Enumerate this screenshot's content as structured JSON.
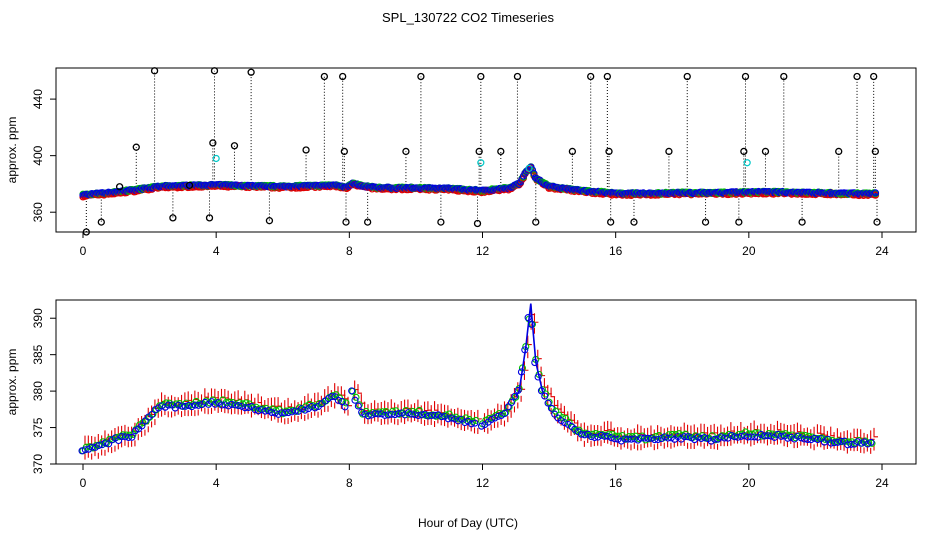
{
  "chart_data": [
    {
      "type": "scatter",
      "title": "SPL_130722  CO2 Timeseries",
      "ylabel": "approx. ppm",
      "xlim": [
        0,
        24
      ],
      "ylim": [
        346,
        462
      ],
      "x_ticks": [
        0,
        4,
        8,
        12,
        16,
        20,
        24
      ],
      "y_ticks": [
        360,
        400,
        440
      ],
      "x_tick_labels": [
        "0",
        "4",
        "8",
        "12",
        "16",
        "20",
        "24"
      ],
      "y_tick_labels": [
        "360",
        "400",
        "440"
      ],
      "baseline_anchors": [
        [
          0,
          372
        ],
        [
          0.5,
          373
        ],
        [
          1,
          374
        ],
        [
          1.5,
          375.5
        ],
        [
          2,
          377
        ],
        [
          2.3,
          378
        ],
        [
          3,
          378.5
        ],
        [
          4,
          379
        ],
        [
          5,
          378.5
        ],
        [
          6,
          378
        ],
        [
          7,
          378.5
        ],
        [
          7.6,
          379
        ],
        [
          7.9,
          377.5
        ],
        [
          8.1,
          380
        ],
        [
          8.5,
          378
        ],
        [
          9,
          377
        ],
        [
          10,
          377
        ],
        [
          11,
          376.5
        ],
        [
          12,
          375
        ],
        [
          12.8,
          377
        ],
        [
          13.1,
          380
        ],
        [
          13.3,
          388
        ],
        [
          13.45,
          392
        ],
        [
          13.6,
          384
        ],
        [
          14,
          378
        ],
        [
          15,
          375
        ],
        [
          15.8,
          373.5
        ],
        [
          16,
          373
        ],
        [
          17,
          373
        ],
        [
          18,
          373.5
        ],
        [
          19,
          373.5
        ],
        [
          20,
          374
        ],
        [
          21,
          374
        ],
        [
          22,
          373.5
        ],
        [
          23,
          373
        ],
        [
          23.8,
          373
        ]
      ],
      "outliers_black": [
        [
          0.1,
          346
        ],
        [
          0.55,
          353
        ],
        [
          1.1,
          378
        ],
        [
          1.6,
          406
        ],
        [
          2.15,
          460
        ],
        [
          2.7,
          356
        ],
        [
          3.2,
          379
        ],
        [
          3.8,
          356
        ],
        [
          3.9,
          409
        ],
        [
          3.95,
          460
        ],
        [
          4.55,
          407
        ],
        [
          5.05,
          459
        ],
        [
          5.6,
          354
        ],
        [
          6.7,
          404
        ],
        [
          7.25,
          456
        ],
        [
          7.8,
          456
        ],
        [
          7.85,
          403
        ],
        [
          7.9,
          353
        ],
        [
          8.55,
          353
        ],
        [
          9.7,
          403
        ],
        [
          10.15,
          456
        ],
        [
          10.75,
          353
        ],
        [
          11.85,
          352
        ],
        [
          11.9,
          403
        ],
        [
          11.95,
          456
        ],
        [
          12.55,
          403
        ],
        [
          13.05,
          456
        ],
        [
          13.6,
          353
        ],
        [
          14.7,
          403
        ],
        [
          15.25,
          456
        ],
        [
          15.75,
          456
        ],
        [
          15.8,
          403
        ],
        [
          15.85,
          353
        ],
        [
          16.55,
          353
        ],
        [
          17.6,
          403
        ],
        [
          18.15,
          456
        ],
        [
          18.7,
          353
        ],
        [
          19.7,
          353
        ],
        [
          19.85,
          403
        ],
        [
          19.9,
          456
        ],
        [
          20.5,
          403
        ],
        [
          21.05,
          456
        ],
        [
          21.6,
          353
        ],
        [
          22.7,
          403
        ],
        [
          23.25,
          456
        ],
        [
          23.75,
          456
        ],
        [
          23.8,
          403
        ],
        [
          23.85,
          353
        ]
      ],
      "outliers_cyan": [
        [
          4.0,
          398
        ],
        [
          11.95,
          395
        ],
        [
          19.95,
          395
        ],
        [
          13.4,
          391
        ]
      ],
      "series": [
        {
          "name": "black",
          "color": "#000000"
        },
        {
          "name": "red",
          "color": "#e00000"
        },
        {
          "name": "green",
          "color": "#00c000"
        },
        {
          "name": "blue",
          "color": "#0000e0"
        },
        {
          "name": "cyan",
          "color": "#00c8c8"
        }
      ]
    },
    {
      "type": "scatter",
      "title": "",
      "xlabel": "Hour of Day (UTC)",
      "ylabel": "approx. ppm",
      "xlim": [
        0,
        24
      ],
      "ylim": [
        370,
        392.5
      ],
      "x_ticks": [
        0,
        4,
        8,
        12,
        16,
        20,
        24
      ],
      "y_ticks": [
        370,
        375,
        380,
        385,
        390
      ],
      "x_tick_labels": [
        "0",
        "4",
        "8",
        "12",
        "16",
        "20",
        "24"
      ],
      "y_tick_labels": [
        "370",
        "375",
        "380",
        "385",
        "390"
      ],
      "anchors": [
        [
          0,
          372
        ],
        [
          0.5,
          372.5
        ],
        [
          1,
          373.5
        ],
        [
          1.5,
          374
        ],
        [
          2,
          376.5
        ],
        [
          2.3,
          378
        ],
        [
          3,
          378
        ],
        [
          3.7,
          378.5
        ],
        [
          4,
          378.5
        ],
        [
          5,
          378
        ],
        [
          6,
          377
        ],
        [
          7,
          378
        ],
        [
          7.6,
          379.5
        ],
        [
          7.9,
          378
        ],
        [
          8.1,
          380
        ],
        [
          8.4,
          377
        ],
        [
          9,
          377
        ],
        [
          10,
          377
        ],
        [
          11,
          376.5
        ],
        [
          12,
          375.5
        ],
        [
          12.7,
          377
        ],
        [
          13.1,
          380
        ],
        [
          13.3,
          386
        ],
        [
          13.45,
          392
        ],
        [
          13.6,
          384
        ],
        [
          13.8,
          380
        ],
        [
          14.2,
          377
        ],
        [
          15,
          374
        ],
        [
          15.8,
          374
        ],
        [
          16,
          373.5
        ],
        [
          17,
          373.5
        ],
        [
          18,
          373.8
        ],
        [
          19,
          373.5
        ],
        [
          19.5,
          374
        ],
        [
          20,
          374
        ],
        [
          21,
          374
        ],
        [
          22,
          373.5
        ],
        [
          23,
          373
        ],
        [
          23.8,
          373
        ]
      ],
      "gaps": [
        [
          7.92,
          8.05
        ],
        [
          11.82,
          11.98
        ]
      ],
      "series": [
        {
          "name": "red",
          "color": "#e00000",
          "marker": "tick"
        },
        {
          "name": "green",
          "color": "#00c000",
          "marker": "circle"
        },
        {
          "name": "blue",
          "color": "#0000e0",
          "marker": "circle"
        }
      ]
    }
  ]
}
